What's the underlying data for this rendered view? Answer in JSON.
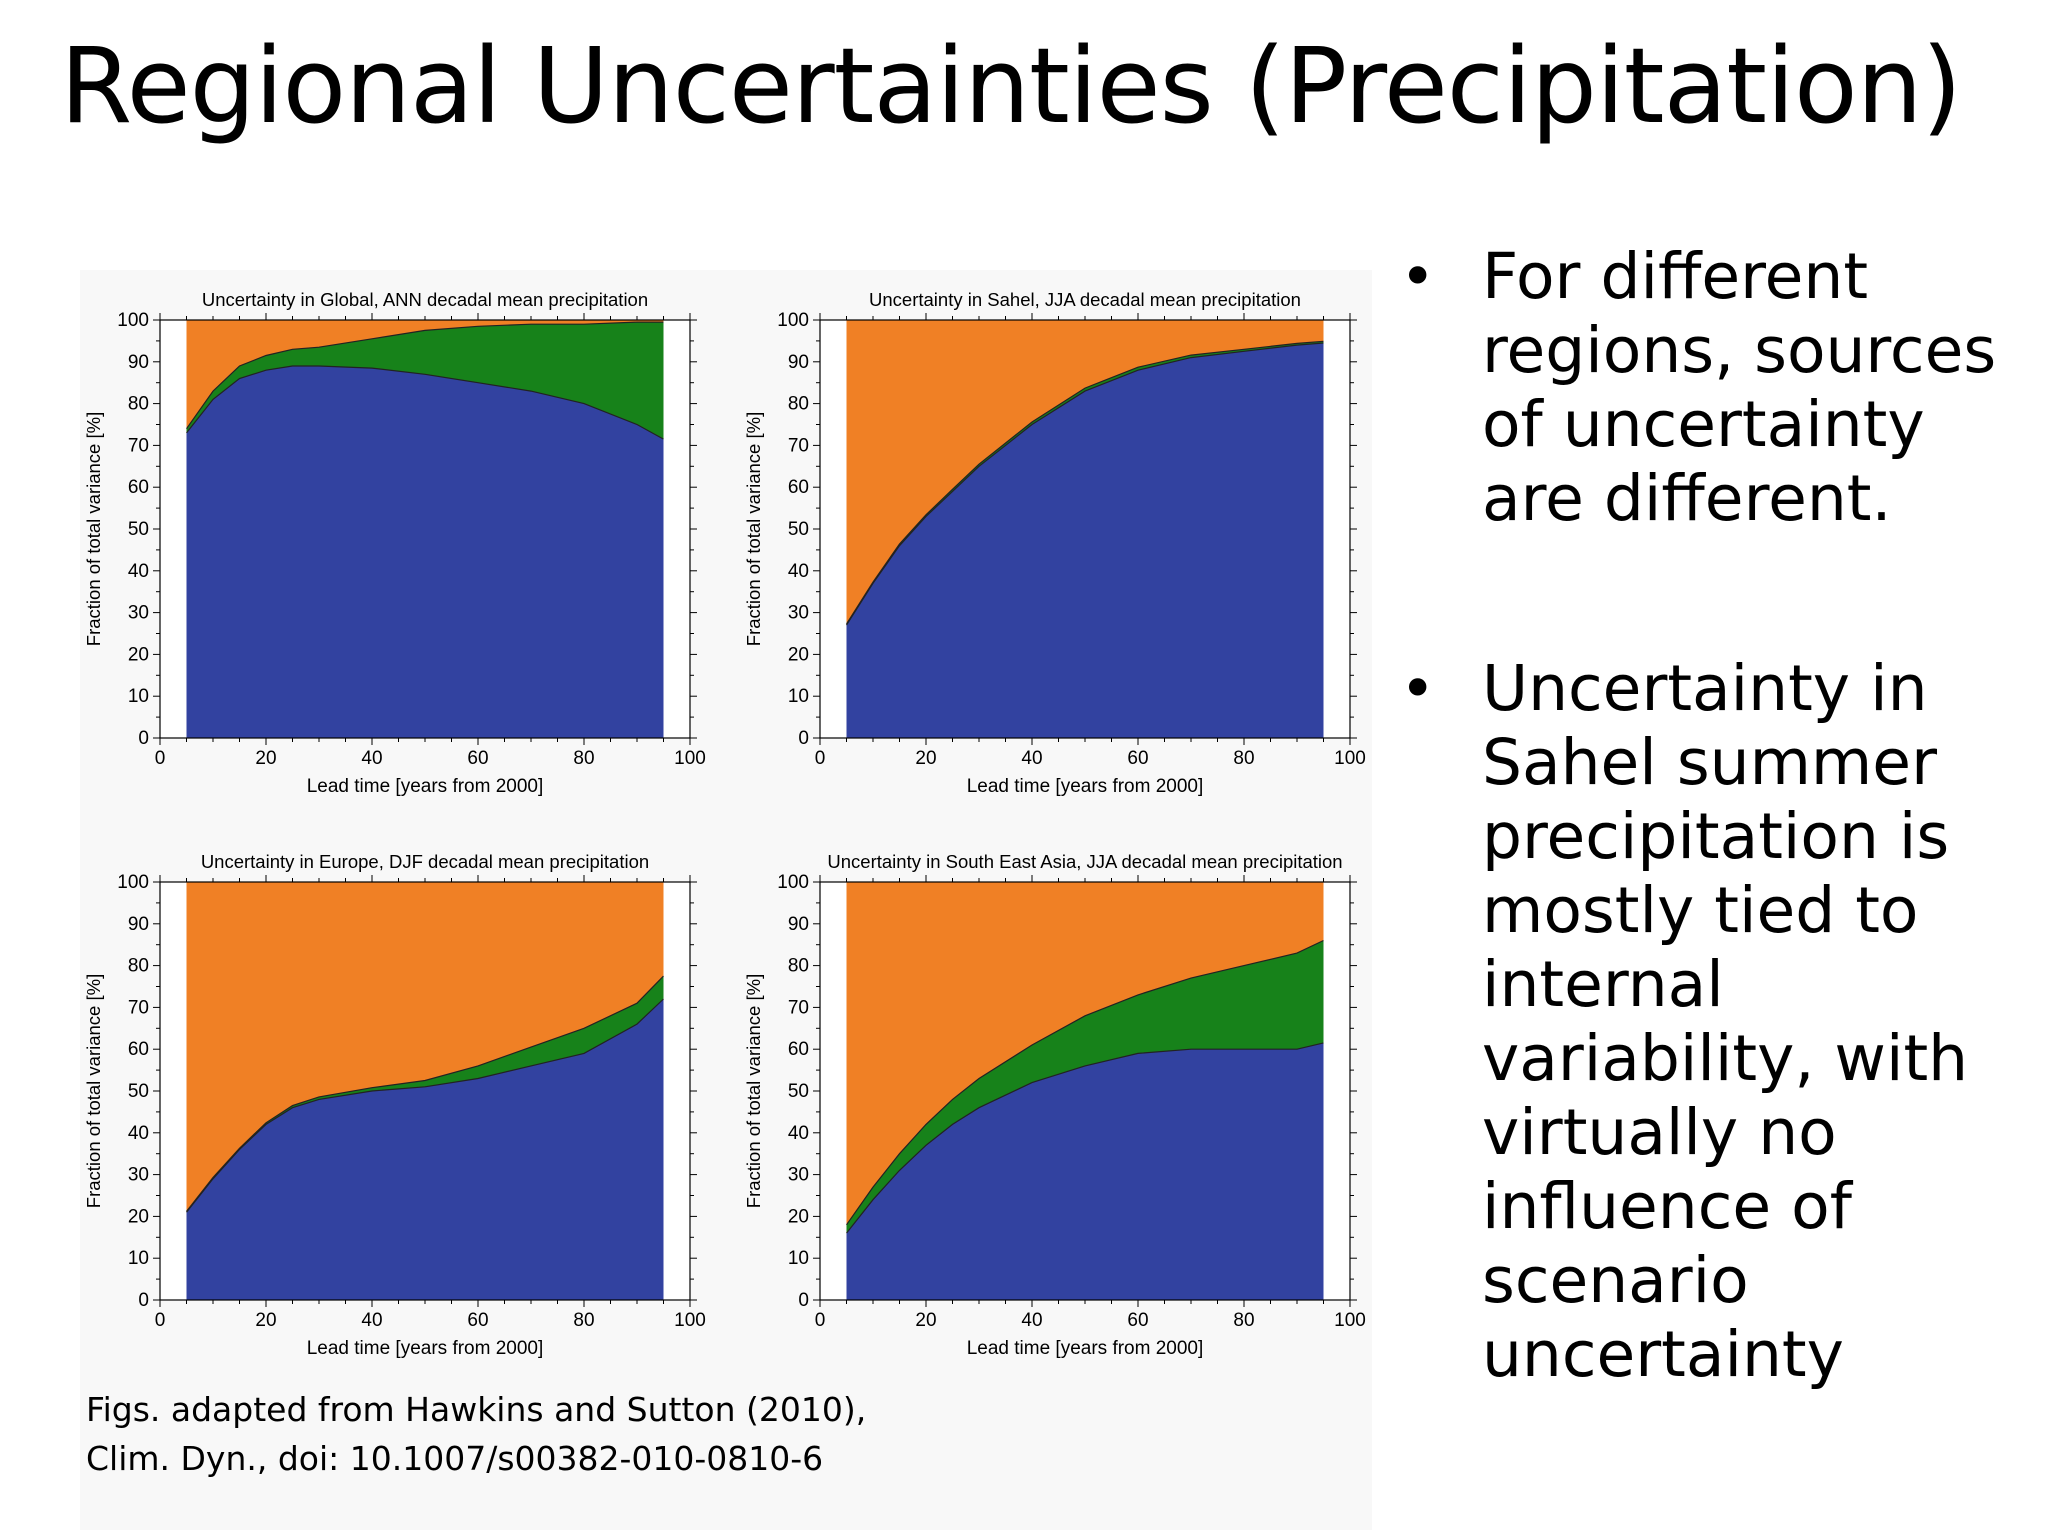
{
  "slide": {
    "title": "Regional Uncertainties (Precipitation)",
    "caption_lines": [
      "Figs. adapted from Hawkins and Sutton (2010),",
      "Clim. Dyn., doi: 10.1007/s00382-010-0810-6"
    ],
    "bullets": [
      "For different regions, sources of uncertainty are different.",
      "Uncertainty in Sahel summer precipitation is mostly tied to internal variability, with virtually no influence of scenario uncertainty"
    ],
    "bullet_symbol": "•"
  },
  "colors": {
    "internal_variability": "#3242a0",
    "scenario": "#17821a",
    "model": "#f08025"
  },
  "chart_data": [
    {
      "type": "area",
      "title": "Uncertainty in Global, ANN decadal mean precipitation",
      "xlabel": "Lead time  [years from 2000]",
      "ylabel": "Fraction of total variance  [%]",
      "xlim": [
        0,
        100
      ],
      "ylim": [
        0,
        100
      ],
      "xticks": [
        0,
        20,
        40,
        60,
        80,
        100
      ],
      "yticks": [
        0,
        10,
        20,
        30,
        40,
        50,
        60,
        70,
        80,
        90,
        100
      ],
      "grid": false,
      "stacked": true,
      "x": [
        5,
        10,
        15,
        20,
        25,
        30,
        40,
        50,
        60,
        70,
        80,
        90,
        95
      ],
      "series": [
        {
          "values": [
            73,
            81,
            86,
            88,
            89,
            89,
            88.5,
            87,
            85,
            83,
            80,
            75,
            71.5
          ]
        },
        {
          "values": [
            1,
            2,
            3,
            3.5,
            4,
            4.5,
            7,
            10.5,
            13.5,
            16,
            19,
            24.5,
            28
          ]
        },
        {
          "values": [
            26,
            17,
            11,
            8.5,
            7,
            6.5,
            4.5,
            2.5,
            1.5,
            1,
            1,
            0.5,
            0.5
          ]
        }
      ]
    },
    {
      "type": "area",
      "title": "Uncertainty in Sahel, JJA decadal mean precipitation",
      "xlabel": "Lead time  [years from 2000]",
      "ylabel": "Fraction of total variance  [%]",
      "xlim": [
        0,
        100
      ],
      "ylim": [
        0,
        100
      ],
      "xticks": [
        0,
        20,
        40,
        60,
        80,
        100
      ],
      "yticks": [
        0,
        10,
        20,
        30,
        40,
        50,
        60,
        70,
        80,
        90,
        100
      ],
      "grid": false,
      "stacked": true,
      "x": [
        5,
        10,
        15,
        20,
        25,
        30,
        40,
        50,
        60,
        70,
        80,
        90,
        95
      ],
      "series": [
        {
          "values": [
            27,
            37,
            46,
            53,
            59,
            65,
            75,
            83,
            88,
            91,
            92.5,
            94,
            94.5
          ]
        },
        {
          "values": [
            0.3,
            0.3,
            0.4,
            0.4,
            0.5,
            0.5,
            0.6,
            0.7,
            0.7,
            0.6,
            0.5,
            0.4,
            0.4
          ]
        },
        {
          "values": [
            72.7,
            62.7,
            53.6,
            46.6,
            40.5,
            34.5,
            24.4,
            16.3,
            11.3,
            8.4,
            7,
            5.6,
            5.1
          ]
        }
      ]
    },
    {
      "type": "area",
      "title": "Uncertainty in Europe, DJF decadal mean precipitation",
      "xlabel": "Lead time  [years from 2000]",
      "ylabel": "Fraction of total variance  [%]",
      "xlim": [
        0,
        100
      ],
      "ylim": [
        0,
        100
      ],
      "xticks": [
        0,
        20,
        40,
        60,
        80,
        100
      ],
      "yticks": [
        0,
        10,
        20,
        30,
        40,
        50,
        60,
        70,
        80,
        90,
        100
      ],
      "grid": false,
      "stacked": true,
      "x": [
        5,
        10,
        15,
        20,
        25,
        30,
        40,
        50,
        60,
        70,
        80,
        90,
        95
      ],
      "series": [
        {
          "values": [
            21,
            29,
            36,
            42,
            46,
            48,
            50,
            51,
            53,
            56,
            59,
            66,
            72
          ]
        },
        {
          "values": [
            0.2,
            0.3,
            0.3,
            0.4,
            0.5,
            0.6,
            0.8,
            1.5,
            3,
            4.5,
            6,
            5,
            5.5
          ]
        },
        {
          "values": [
            78.8,
            70.7,
            63.7,
            57.6,
            53.5,
            51.4,
            49.2,
            47.5,
            44,
            39.5,
            35,
            29,
            22.5
          ]
        }
      ]
    },
    {
      "type": "area",
      "title": "Uncertainty in South East Asia, JJA decadal mean precipitation",
      "xlabel": "Lead time  [years from 2000]",
      "ylabel": "Fraction of total variance  [%]",
      "xlim": [
        0,
        100
      ],
      "ylim": [
        0,
        100
      ],
      "xticks": [
        0,
        20,
        40,
        60,
        80,
        100
      ],
      "yticks": [
        0,
        10,
        20,
        30,
        40,
        50,
        60,
        70,
        80,
        90,
        100
      ],
      "grid": false,
      "stacked": true,
      "x": [
        5,
        10,
        15,
        20,
        25,
        30,
        40,
        50,
        60,
        70,
        80,
        90,
        95
      ],
      "series": [
        {
          "values": [
            16,
            24,
            31,
            37,
            42,
            46,
            52,
            56,
            59,
            60,
            60,
            60,
            61.5
          ]
        },
        {
          "values": [
            2,
            3,
            4,
            5,
            6,
            7,
            9,
            12,
            14,
            17,
            20,
            23,
            24.5
          ]
        },
        {
          "values": [
            82,
            73,
            65,
            58,
            52,
            47,
            39,
            32,
            27,
            23,
            20,
            17,
            14
          ]
        }
      ]
    }
  ]
}
